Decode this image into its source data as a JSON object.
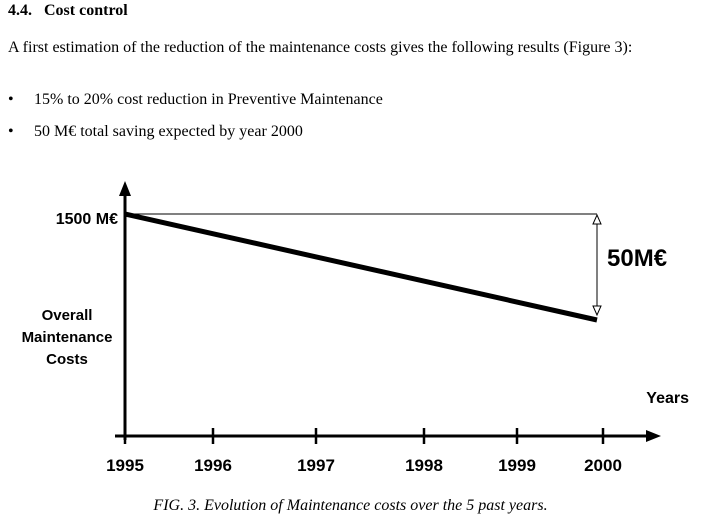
{
  "section": {
    "number": "4.4.",
    "title": "Cost control"
  },
  "paragraph": "A first estimation of the reduction of the maintenance costs gives the following results (Figure 3):",
  "bullets": [
    "15% to 20% cost reduction in Preventive Maintenance",
    "50 M€ total saving expected by year 2000"
  ],
  "chart_data": {
    "type": "line",
    "x": [
      1995,
      2000
    ],
    "values": [
      1500,
      1450
    ],
    "tick_labels": [
      "1995",
      "1996",
      "1997",
      "1998",
      "1999",
      "2000"
    ],
    "tick_values": [
      1995,
      1996,
      1997,
      1998,
      1999,
      2000
    ],
    "y_label_value": "1500 M€",
    "ylabel": [
      "Overall",
      "Maintenance",
      "Costs"
    ],
    "xlabel": "Years",
    "annotation": "50M€",
    "ylim": [
      1420,
      1510
    ]
  },
  "caption": "FIG. 3. Evolution of Maintenance costs over the 5 past years."
}
